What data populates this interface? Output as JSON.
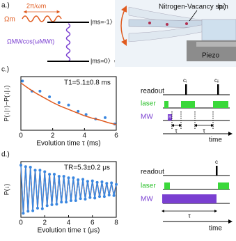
{
  "panel_a": {
    "label": "a.)",
    "period": "2π/ωm",
    "rabi": "Ωm",
    "upper_state": "|ms=-1〉=|↑〉",
    "drive": "ΩMWcos(ωMWt)",
    "lower_state": "|ms=0〉=|↓〉"
  },
  "panel_b": {
    "label": "b.)",
    "spin": "Nitrogen-Vacancy spin",
    "piezo": "Piezo"
  },
  "chart_data": [
    {
      "type": "line",
      "label": "c.)",
      "annotation": "T1=5.1±0.8 ms",
      "x_label": "Evolution time τ (ms)",
      "y_label": "P(↓|↑)−P(↓|↓)",
      "xlim": [
        0,
        6
      ],
      "xticks": [
        0,
        2,
        4,
        6
      ],
      "ylim": [
        0.2,
        1.05
      ],
      "series": [
        {
          "color": "#3a87e0",
          "mode": "markers",
          "x": [
            0.1,
            0.7,
            1.2,
            1.8,
            2.4,
            3.0,
            3.6,
            4.1,
            4.7,
            5.3,
            5.9
          ],
          "values": [
            0.98,
            0.82,
            0.82,
            0.73,
            0.64,
            0.6,
            0.5,
            0.45,
            0.38,
            0.4,
            0.3
          ]
        },
        {
          "color": "#e05a1e",
          "mode": "line",
          "x": [
            0,
            0.5,
            1,
            1.5,
            2,
            2.5,
            3,
            3.5,
            4,
            4.5,
            5,
            5.5,
            6
          ],
          "values": [
            0.95,
            0.86,
            0.78,
            0.71,
            0.64,
            0.58,
            0.53,
            0.48,
            0.43,
            0.39,
            0.36,
            0.32,
            0.29
          ]
        }
      ]
    },
    {
      "type": "line",
      "label": "d.)",
      "annotation": "TR=5.3±0.2 μs",
      "x_label": "Evolution time τ (μs)",
      "y_label": "P(↓)",
      "xlim": [
        0,
        8
      ],
      "xticks": [
        0,
        2,
        4,
        6,
        8
      ],
      "ylim": [
        -0.05,
        1.05
      ],
      "series": [
        {
          "color": "#e05a1e",
          "mode": "line",
          "x": [
            0,
            0.2,
            0.4,
            0.6,
            0.8,
            1,
            1.2,
            1.4,
            1.6,
            1.8,
            2,
            2.2,
            2.4,
            2.6,
            2.8,
            3,
            3.2,
            3.4,
            3.6,
            3.8,
            4,
            4.2,
            4.4,
            4.6,
            4.8,
            5,
            5.2,
            5.4,
            5.6,
            5.8,
            6,
            6.2,
            6.4,
            6.6,
            6.8,
            7,
            7.2,
            7.4,
            7.6,
            7.8,
            8
          ],
          "values": [
            1.0,
            0.02,
            0.96,
            0.05,
            0.93,
            0.09,
            0.9,
            0.12,
            0.87,
            0.14,
            0.84,
            0.17,
            0.82,
            0.19,
            0.79,
            0.22,
            0.77,
            0.24,
            0.75,
            0.26,
            0.74,
            0.27,
            0.72,
            0.29,
            0.7,
            0.31,
            0.69,
            0.32,
            0.67,
            0.33,
            0.66,
            0.34,
            0.65,
            0.35,
            0.64,
            0.37,
            0.63,
            0.38,
            0.62,
            0.39,
            0.61
          ]
        },
        {
          "color": "#3a87e0",
          "mode": "line-markers",
          "x": [
            0,
            0.2,
            0.4,
            0.6,
            0.8,
            1,
            1.2,
            1.4,
            1.6,
            1.8,
            2,
            2.2,
            2.4,
            2.6,
            2.8,
            3,
            3.2,
            3.4,
            3.6,
            3.8,
            4,
            4.2,
            4.4,
            4.6,
            4.8,
            5,
            5.2,
            5.4,
            5.6,
            5.8,
            6,
            6.2,
            6.4,
            6.6,
            6.8,
            7,
            7.2,
            7.4,
            7.6,
            7.8,
            8
          ],
          "values": [
            0.98,
            0.03,
            0.95,
            0.07,
            0.94,
            0.08,
            0.88,
            0.13,
            0.88,
            0.12,
            0.85,
            0.18,
            0.8,
            0.2,
            0.8,
            0.21,
            0.76,
            0.25,
            0.76,
            0.25,
            0.73,
            0.28,
            0.73,
            0.28,
            0.69,
            0.32,
            0.7,
            0.31,
            0.66,
            0.34,
            0.67,
            0.33,
            0.64,
            0.36,
            0.65,
            0.36,
            0.62,
            0.39,
            0.63,
            0.38,
            0.6
          ]
        }
      ]
    }
  ],
  "sequence_c": {
    "rows": [
      "readout",
      "laser",
      "MW"
    ],
    "readouts": [
      "cᵢ",
      "cᵢᵢ"
    ],
    "pi": "π",
    "tau": [
      "τ",
      "τ"
    ],
    "time": "time"
  },
  "sequence_d": {
    "rows": [
      "readout",
      "laser",
      "MW"
    ],
    "readout": "c",
    "tau": "τ",
    "time": "time"
  }
}
